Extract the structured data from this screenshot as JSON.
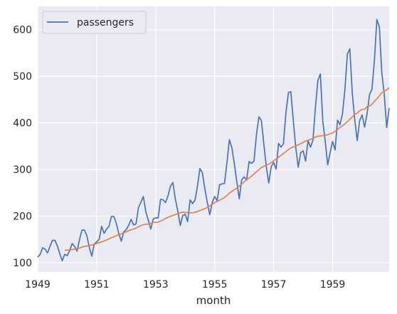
{
  "chart_data": {
    "type": "line",
    "title": "",
    "xlabel": "month",
    "ylabel": "",
    "xlim": [
      1949.0,
      1960.917
    ],
    "ylim": [
      80,
      650
    ],
    "x_ticks": [
      1949,
      1951,
      1953,
      1955,
      1957,
      1959
    ],
    "x_tick_labels": [
      "1949",
      "1951",
      "1953",
      "1955",
      "1957",
      "1959"
    ],
    "y_ticks": [
      100,
      200,
      300,
      400,
      500,
      600
    ],
    "y_tick_labels": [
      "100",
      "200",
      "300",
      "400",
      "500",
      "600"
    ],
    "grid": true,
    "legend": {
      "position": "upper-left",
      "entries": [
        "passengers"
      ]
    },
    "colors": {
      "background": "#eaeaf2",
      "grid": "#ffffff",
      "passengers": "#4c72b0",
      "trend": "#dd8452"
    },
    "x_start": "1949-01",
    "series": [
      {
        "name": "passengers",
        "values": [
          112,
          118,
          132,
          129,
          121,
          135,
          148,
          148,
          136,
          119,
          104,
          118,
          115,
          126,
          141,
          135,
          125,
          149,
          170,
          170,
          158,
          133,
          114,
          140,
          145,
          150,
          178,
          163,
          172,
          178,
          199,
          199,
          184,
          162,
          146,
          166,
          171,
          180,
          193,
          181,
          183,
          218,
          230,
          242,
          209,
          191,
          172,
          194,
          196,
          196,
          236,
          235,
          229,
          243,
          264,
          272,
          237,
          211,
          180,
          201,
          204,
          188,
          235,
          227,
          234,
          264,
          302,
          293,
          259,
          229,
          203,
          229,
          242,
          233,
          267,
          269,
          270,
          315,
          364,
          347,
          312,
          274,
          237,
          278,
          284,
          277,
          317,
          313,
          318,
          374,
          413,
          405,
          355,
          306,
          271,
          306,
          315,
          301,
          356,
          348,
          355,
          422,
          465,
          467,
          404,
          347,
          305,
          336,
          340,
          318,
          362,
          348,
          363,
          435,
          491,
          505,
          404,
          359,
          310,
          337,
          360,
          342,
          406,
          396,
          420,
          472,
          548,
          559,
          463,
          407,
          362,
          405,
          417,
          391,
          419,
          461,
          472,
          535,
          622,
          606,
          508,
          461,
          390,
          432
        ]
      },
      {
        "name": "",
        "x_start": "1949-12",
        "values": [
          126.7,
          126.9,
          127.6,
          128.3,
          128.8,
          129.8,
          131.3,
          133.4,
          134.8,
          135.8,
          136.8,
          137.7,
          139.4,
          141.0,
          143.1,
          144.6,
          146.6,
          148.6,
          151.1,
          153.6,
          155.7,
          158.1,
          159.8,
          161.8,
          163.8,
          166.2,
          168.7,
          170.5,
          172.1,
          174.2,
          177.0,
          179.8,
          181.3,
          182.5,
          182.9,
          184.4,
          186.4,
          186.6,
          186.9,
          189.3,
          191.8,
          194.8,
          197.3,
          199.5,
          201.3,
          203.2,
          205.3,
          207.0,
          208.3,
          207.8,
          207.6,
          206.8,
          207.2,
          208.0,
          210.0,
          212.1,
          213.8,
          215.8,
          218.6,
          221.9,
          225.3,
          229.0,
          231.7,
          234.2,
          236.8,
          239.7,
          244.1,
          249.1,
          253.2,
          256.7,
          259.8,
          264.4,
          268.8,
          273.3,
          277.7,
          281.5,
          285.6,
          290.3,
          294.8,
          299.4,
          304.2,
          306.6,
          309.2,
          311.3,
          314.8,
          318.9,
          322.3,
          326.2,
          330.3,
          334.3,
          338.3,
          342.9,
          346.2,
          348.3,
          350.8,
          352.8,
          355.3,
          358.2,
          360.8,
          362.8,
          364.4,
          367.0,
          369.4,
          371.6,
          371.8,
          372.8,
          373.1,
          374.8,
          376.5,
          378.5,
          381.9,
          385.8,
          390.4,
          393.6,
          398.1,
          402.8,
          407.8,
          412.8,
          418.0,
          421.0,
          426.0,
          429.0,
          428.9,
          434.8,
          436.1,
          440.3,
          446.3,
          451.5,
          458.0,
          464.6,
          467.8,
          471.1,
          475.8
        ]
      }
    ]
  }
}
